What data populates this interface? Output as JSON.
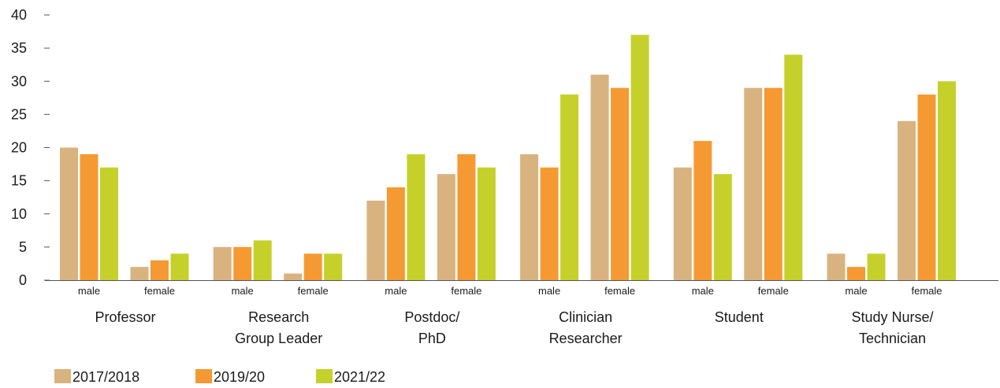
{
  "chart_data": {
    "type": "bar",
    "title": "",
    "xlabel": "",
    "ylabel": "",
    "ylim": [
      0,
      40
    ],
    "yticks": [
      0,
      5,
      10,
      15,
      20,
      25,
      30,
      35,
      40
    ],
    "ytick_labels": [
      "0",
      "5",
      "10",
      "15",
      "20",
      "25",
      "30",
      "35",
      "40"
    ],
    "grid": false,
    "legend_position": "bottom-left",
    "groups": [
      {
        "label_lines": [
          "Professor"
        ],
        "subcategories": [
          "male",
          "female"
        ]
      },
      {
        "label_lines": [
          "Research",
          "Group Leader"
        ],
        "subcategories": [
          "male",
          "female"
        ]
      },
      {
        "label_lines": [
          "Postdoc/",
          "PhD"
        ],
        "subcategories": [
          "male",
          "female"
        ]
      },
      {
        "label_lines": [
          "Clinician",
          "Researcher"
        ],
        "subcategories": [
          "male",
          "female"
        ]
      },
      {
        "label_lines": [
          "Student"
        ],
        "subcategories": [
          "male",
          "female"
        ]
      },
      {
        "label_lines": [
          "Study Nurse/",
          "Technician"
        ],
        "subcategories": [
          "male",
          "female"
        ]
      }
    ],
    "series": [
      {
        "name": "2017/2018",
        "color": "#d9b37f",
        "values": [
          20,
          2,
          5,
          1,
          12,
          16,
          19,
          31,
          17,
          29,
          4,
          24
        ]
      },
      {
        "name": "2019/20",
        "color": "#f59a32",
        "values": [
          19,
          3,
          5,
          4,
          14,
          19,
          17,
          29,
          21,
          29,
          2,
          28
        ]
      },
      {
        "name": "2021/22",
        "color": "#c5d12a",
        "values": [
          17,
          4,
          6,
          4,
          19,
          17,
          28,
          37,
          16,
          34,
          4,
          30
        ]
      }
    ]
  }
}
